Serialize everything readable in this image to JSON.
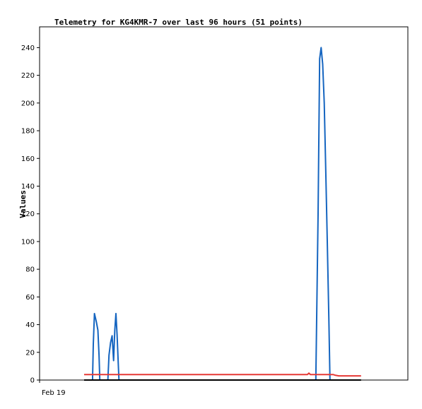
{
  "chart_data": {
    "type": "line",
    "title": "Telemetry for KG4KMR-7 over last 96 hours (51 points)",
    "ylabel": "Values",
    "xlabel": "",
    "x_tick_labels": [
      "Feb 19"
    ],
    "y_ticks": [
      0,
      20,
      40,
      60,
      80,
      100,
      120,
      140,
      160,
      180,
      200,
      220,
      240
    ],
    "ylim": [
      0,
      255
    ],
    "xlim": [
      0,
      96
    ],
    "grid": false,
    "series": [
      {
        "color": "#1565c0",
        "points": [
          [
            11.6,
            0
          ],
          [
            13.8,
            0
          ],
          [
            14.0,
            26
          ],
          [
            14.3,
            48
          ],
          [
            14.8,
            42
          ],
          [
            15.2,
            36
          ],
          [
            15.5,
            18
          ],
          [
            15.7,
            0
          ],
          [
            17.8,
            0
          ],
          [
            18.1,
            18
          ],
          [
            18.5,
            27
          ],
          [
            18.9,
            32
          ],
          [
            19.3,
            14
          ],
          [
            19.6,
            36
          ],
          [
            19.9,
            48
          ],
          [
            20.2,
            33
          ],
          [
            20.5,
            12
          ],
          [
            20.7,
            0
          ],
          [
            72.0,
            0
          ],
          [
            72.6,
            120
          ],
          [
            73.0,
            232
          ],
          [
            73.4,
            240
          ],
          [
            73.8,
            228
          ],
          [
            74.2,
            200
          ],
          [
            74.6,
            150
          ],
          [
            75.0,
            100
          ],
          [
            75.4,
            45
          ],
          [
            75.7,
            0
          ],
          [
            78.5,
            0
          ]
        ]
      },
      {
        "color": "#e53935",
        "points": [
          [
            11.6,
            4
          ],
          [
            69.8,
            4
          ],
          [
            70.2,
            5
          ],
          [
            70.6,
            4
          ],
          [
            76.5,
            4
          ],
          [
            77.0,
            3.5
          ],
          [
            78.0,
            3
          ],
          [
            83.8,
            3
          ]
        ]
      },
      {
        "color": "#000000",
        "points": [
          [
            11.6,
            0
          ],
          [
            83.8,
            0
          ]
        ]
      }
    ]
  }
}
